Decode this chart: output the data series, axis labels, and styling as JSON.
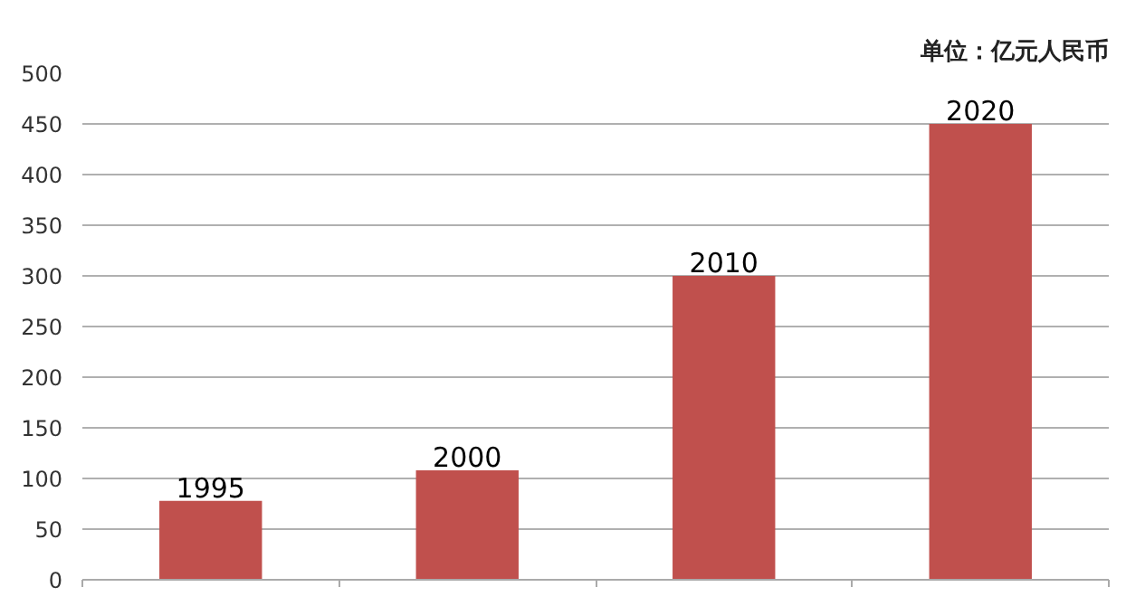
{
  "chart_data": {
    "type": "bar",
    "categories": [
      "1995",
      "2000",
      "2010",
      "2020"
    ],
    "values": [
      78,
      108,
      300,
      450
    ],
    "color": "#c0504d",
    "ylim": [
      0,
      500
    ],
    "yticks": [
      0,
      50,
      100,
      150,
      200,
      250,
      300,
      350,
      400,
      450,
      500
    ],
    "grid": "y",
    "annotations": [
      "单位：亿元人民币"
    ]
  }
}
